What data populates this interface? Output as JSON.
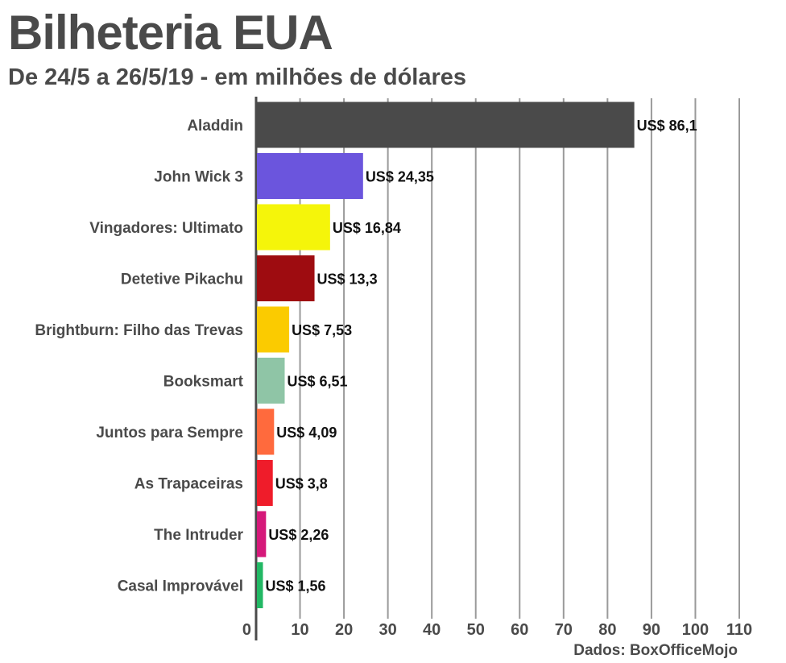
{
  "header": {
    "title": "Bilheteria EUA",
    "subtitle": "De 24/5 a 26/5/19 - em milhões de dólares"
  },
  "footer": {
    "source": "Dados: BoxOfficeMojo"
  },
  "chart_data": {
    "type": "bar",
    "orientation": "horizontal",
    "title": "Bilheteria EUA",
    "subtitle": "De 24/5 a 26/5/19 - em milhões de dólares",
    "categories": [
      "Aladdin",
      "John Wick 3",
      "Vingadores: Ultimato",
      "Detetive Pikachu",
      "Brightburn: Filho das Trevas",
      "Booksmart",
      "Juntos para Sempre",
      "As Trapaceiras",
      "The Intruder",
      "Casal Improvável"
    ],
    "values": [
      86.1,
      24.35,
      16.84,
      13.3,
      7.53,
      6.51,
      4.09,
      3.8,
      2.26,
      1.56
    ],
    "value_labels": [
      "US$ 86,1",
      "US$ 24,35",
      "US$ 16,84",
      "US$ 13,3",
      "US$ 7,53",
      "US$ 6,51",
      "US$ 4,09",
      "US$ 3,8",
      "US$ 2,26",
      "US$ 1,56"
    ],
    "colors": [
      "#4a4a4a",
      "#6b55dd",
      "#f5f50a",
      "#9e0c10",
      "#fbcb00",
      "#8fc5a6",
      "#ff6a3d",
      "#ef1c2a",
      "#d5197a",
      "#22b864"
    ],
    "xlim": [
      0,
      110
    ],
    "xticks": [
      0,
      10,
      20,
      30,
      40,
      50,
      60,
      70,
      80,
      90,
      100,
      110
    ],
    "xtick_labels": [
      "0",
      "10",
      "20",
      "30",
      "40",
      "50",
      "60",
      "70",
      "80",
      "90",
      "100",
      "110"
    ],
    "grid": true,
    "xlabel": "",
    "ylabel": "",
    "source": "Dados: BoxOfficeMojo"
  }
}
